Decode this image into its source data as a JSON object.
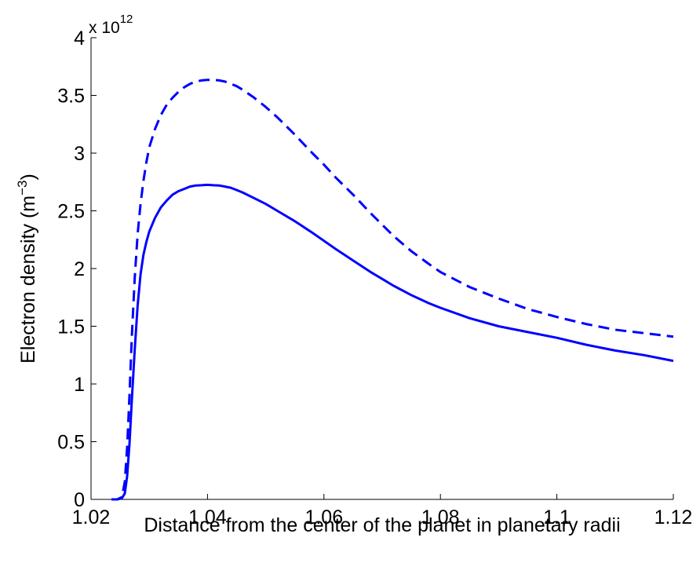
{
  "chart_data": {
    "type": "line",
    "title": "",
    "xlabel": "Distance from the center of the planet in planetary radii",
    "ylabel": {
      "main": "Electron density (m",
      "superscript": "−3",
      "close": ")"
    },
    "y_multiplier": {
      "base": "x 10",
      "exponent": "12"
    },
    "xlim": [
      1.02,
      1.12
    ],
    "ylim": [
      0,
      4
    ],
    "xticks": [
      1.02,
      1.04,
      1.06,
      1.08,
      1.1,
      1.12
    ],
    "xtick_labels": [
      "1.02",
      "1.04",
      "1.06",
      "1.08",
      "1.1",
      "1.12"
    ],
    "yticks": [
      0,
      0.5,
      1,
      1.5,
      2,
      2.5,
      3,
      3.5,
      4
    ],
    "ytick_labels": [
      "0",
      "0.5",
      "1",
      "1.5",
      "2",
      "2.5",
      "3",
      "3.5",
      "4"
    ],
    "grid": false,
    "legend": "none",
    "series": [
      {
        "line_style": "dashed",
        "color": "#0000ff",
        "x": [
          1.0235,
          1.0245,
          1.0253,
          1.0258,
          1.0262,
          1.0266,
          1.027,
          1.0275,
          1.028,
          1.0285,
          1.029,
          1.0295,
          1.03,
          1.031,
          1.032,
          1.033,
          1.034,
          1.035,
          1.036,
          1.037,
          1.038,
          1.039,
          1.04,
          1.041,
          1.042,
          1.043,
          1.044,
          1.045,
          1.046,
          1.048,
          1.05,
          1.052,
          1.055,
          1.058,
          1.06,
          1.062,
          1.065,
          1.068,
          1.07,
          1.072,
          1.075,
          1.078,
          1.08,
          1.085,
          1.09,
          1.095,
          1.1,
          1.105,
          1.11,
          1.115,
          1.12
        ],
        "y": [
          0,
          0,
          0.02,
          0.15,
          0.45,
          0.9,
          1.4,
          1.92,
          2.3,
          2.56,
          2.76,
          2.92,
          3.05,
          3.21,
          3.33,
          3.42,
          3.48,
          3.53,
          3.57,
          3.6,
          3.62,
          3.63,
          3.635,
          3.635,
          3.63,
          3.62,
          3.6,
          3.58,
          3.55,
          3.48,
          3.4,
          3.31,
          3.16,
          3.0,
          2.9,
          2.79,
          2.64,
          2.48,
          2.38,
          2.28,
          2.15,
          2.04,
          1.97,
          1.84,
          1.74,
          1.65,
          1.58,
          1.52,
          1.47,
          1.44,
          1.41
        ]
      },
      {
        "line_style": "solid",
        "color": "#0000ff",
        "x": [
          1.0235,
          1.0245,
          1.0253,
          1.0258,
          1.0262,
          1.0266,
          1.027,
          1.0275,
          1.028,
          1.0285,
          1.029,
          1.0295,
          1.03,
          1.031,
          1.032,
          1.033,
          1.034,
          1.035,
          1.036,
          1.037,
          1.038,
          1.039,
          1.04,
          1.041,
          1.042,
          1.043,
          1.044,
          1.045,
          1.046,
          1.048,
          1.05,
          1.052,
          1.055,
          1.058,
          1.06,
          1.062,
          1.065,
          1.068,
          1.07,
          1.072,
          1.075,
          1.078,
          1.08,
          1.085,
          1.09,
          1.095,
          1.1,
          1.105,
          1.11,
          1.115,
          1.12
        ],
        "y": [
          0,
          0,
          0.01,
          0.05,
          0.2,
          0.48,
          0.85,
          1.3,
          1.68,
          1.95,
          2.12,
          2.23,
          2.32,
          2.44,
          2.53,
          2.59,
          2.64,
          2.67,
          2.69,
          2.71,
          2.72,
          2.722,
          2.725,
          2.722,
          2.72,
          2.71,
          2.7,
          2.68,
          2.66,
          2.61,
          2.56,
          2.5,
          2.41,
          2.31,
          2.24,
          2.17,
          2.07,
          1.97,
          1.91,
          1.85,
          1.77,
          1.7,
          1.66,
          1.57,
          1.5,
          1.45,
          1.4,
          1.34,
          1.29,
          1.25,
          1.2
        ]
      }
    ]
  }
}
